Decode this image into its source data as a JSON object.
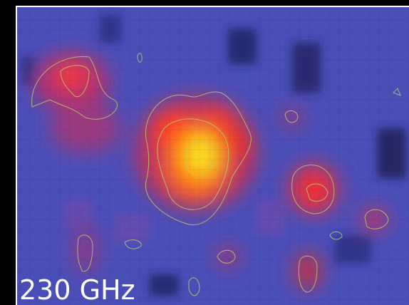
{
  "image": {
    "label": "230 GHz"
  }
}
